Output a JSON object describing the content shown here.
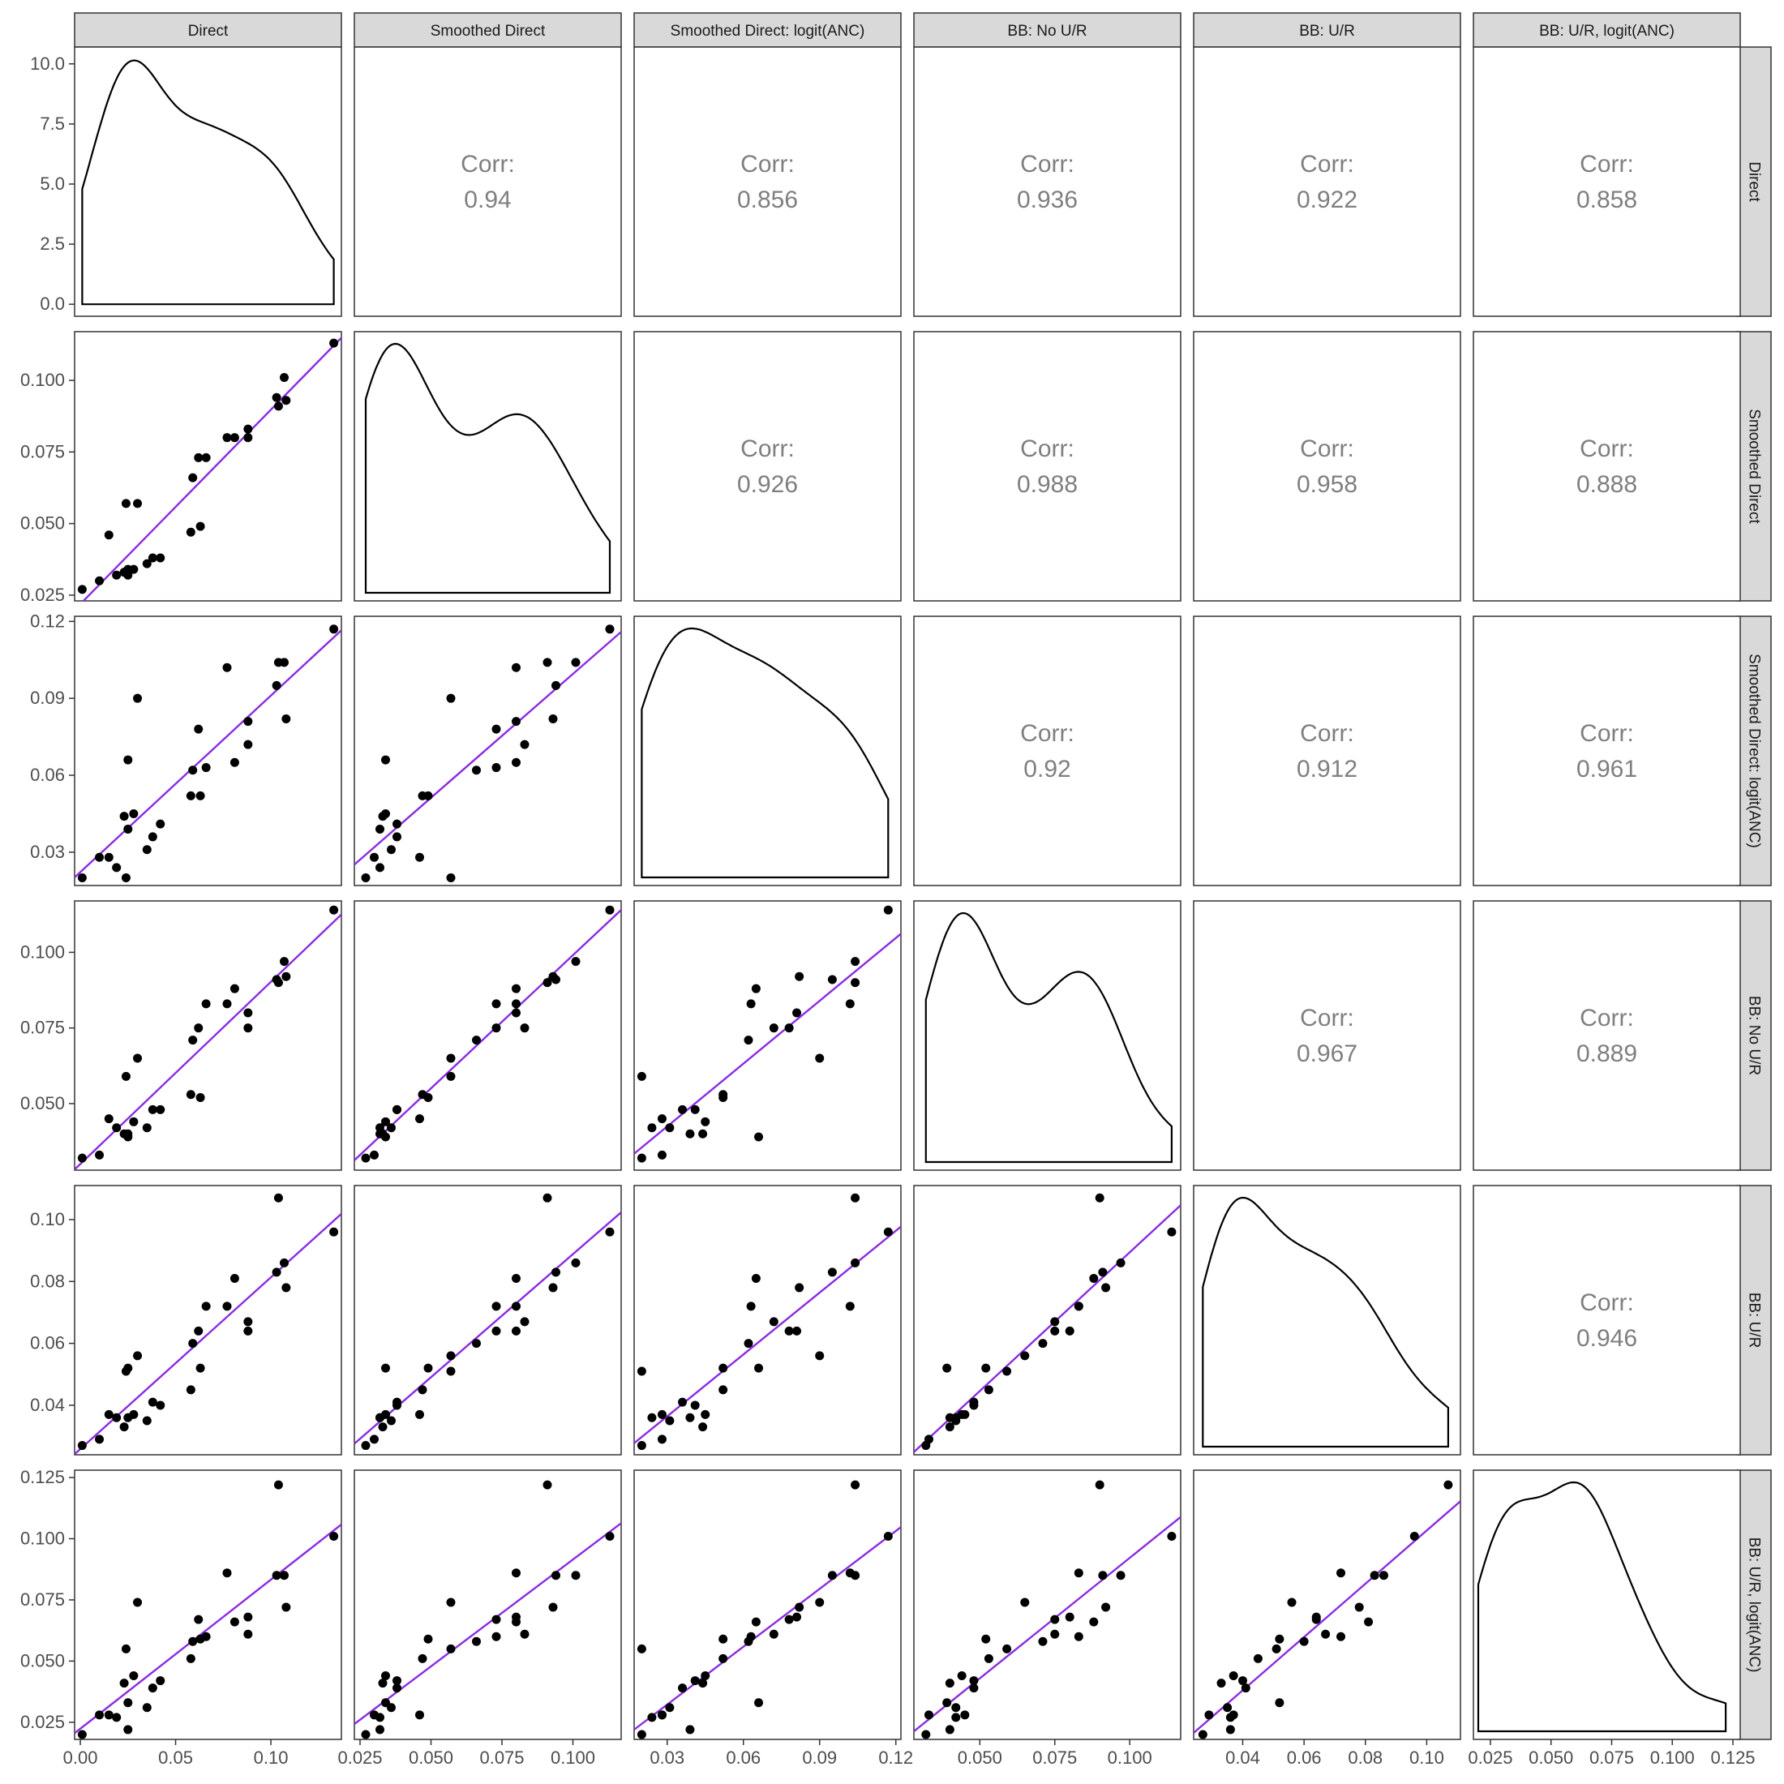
{
  "chart_data": {
    "type": "scatter-matrix",
    "variables": [
      "Direct",
      "Smoothed Direct",
      "Smoothed Direct: logit(ANC)",
      "BB: No U/R",
      "BB: U/R",
      "BB: U/R, logit(ANC)"
    ],
    "corr_label": "Corr:",
    "correlations": [
      {
        "row": 0,
        "col": 1,
        "value": "0.94"
      },
      {
        "row": 0,
        "col": 2,
        "value": "0.856"
      },
      {
        "row": 0,
        "col": 3,
        "value": "0.936"
      },
      {
        "row": 0,
        "col": 4,
        "value": "0.922"
      },
      {
        "row": 0,
        "col": 5,
        "value": "0.858"
      },
      {
        "row": 1,
        "col": 2,
        "value": "0.926"
      },
      {
        "row": 1,
        "col": 3,
        "value": "0.988"
      },
      {
        "row": 1,
        "col": 4,
        "value": "0.958"
      },
      {
        "row": 1,
        "col": 5,
        "value": "0.888"
      },
      {
        "row": 2,
        "col": 3,
        "value": "0.92"
      },
      {
        "row": 2,
        "col": 4,
        "value": "0.912"
      },
      {
        "row": 2,
        "col": 5,
        "value": "0.961"
      },
      {
        "row": 3,
        "col": 4,
        "value": "0.967"
      },
      {
        "row": 3,
        "col": 5,
        "value": "0.889"
      },
      {
        "row": 4,
        "col": 5,
        "value": "0.946"
      }
    ],
    "ranges": [
      [
        -0.003,
        0.137
      ],
      [
        0.023,
        0.117
      ],
      [
        0.017,
        0.122
      ],
      [
        0.028,
        0.117
      ],
      [
        0.024,
        0.111
      ],
      [
        0.018,
        0.128
      ]
    ],
    "x_ticks": [
      {
        "values": [
          0.0,
          0.05,
          0.1
        ],
        "labels": [
          "0.00",
          "0.05",
          "0.10"
        ]
      },
      {
        "values": [
          0.025,
          0.05,
          0.075,
          0.1
        ],
        "labels": [
          "0.025",
          "0.050",
          "0.075",
          "0.100"
        ]
      },
      {
        "values": [
          0.03,
          0.06,
          0.09,
          0.12
        ],
        "labels": [
          "0.03",
          "0.06",
          "0.09",
          "0.12"
        ]
      },
      {
        "values": [
          0.05,
          0.075,
          0.1
        ],
        "labels": [
          "0.050",
          "0.075",
          "0.100"
        ]
      },
      {
        "values": [
          0.04,
          0.06,
          0.08,
          0.1
        ],
        "labels": [
          "0.04",
          "0.06",
          "0.08",
          "0.10"
        ]
      },
      {
        "values": [
          0.025,
          0.05,
          0.075,
          0.1,
          0.125
        ],
        "labels": [
          "0.025",
          "0.050",
          "0.075",
          "0.100",
          "0.125"
        ]
      }
    ],
    "y_ticks": [
      {
        "values": [
          0.0,
          2.5,
          5.0,
          7.5,
          10.0
        ],
        "labels": [
          "0.0",
          "2.5",
          "5.0",
          "7.5",
          "10.0"
        ],
        "range": [
          -0.5,
          10.7
        ]
      },
      {
        "values": [
          0.025,
          0.05,
          0.075,
          0.1
        ],
        "labels": [
          "0.025",
          "0.050",
          "0.075",
          "0.100"
        ]
      },
      {
        "values": [
          0.03,
          0.06,
          0.09,
          0.12
        ],
        "labels": [
          "0.03",
          "0.06",
          "0.09",
          "0.12"
        ]
      },
      {
        "values": [
          0.05,
          0.075,
          0.1
        ],
        "labels": [
          "0.050",
          "0.075",
          "0.100"
        ]
      },
      {
        "values": [
          0.04,
          0.06,
          0.08,
          0.1
        ],
        "labels": [
          "0.04",
          "0.06",
          "0.08",
          "0.10"
        ]
      },
      {
        "values": [
          0.025,
          0.05,
          0.075,
          0.1,
          0.125
        ],
        "labels": [
          "0.025",
          "0.050",
          "0.075",
          "0.100",
          "0.125"
        ]
      }
    ],
    "points": [
      [
        0.001,
        0.027,
        0.02,
        0.032,
        0.027,
        0.02
      ],
      [
        0.01,
        0.03,
        0.028,
        0.033,
        0.029,
        0.028
      ],
      [
        0.015,
        0.046,
        0.028,
        0.045,
        0.037,
        0.028
      ],
      [
        0.019,
        0.032,
        0.024,
        0.042,
        0.036,
        0.027
      ],
      [
        0.023,
        0.033,
        0.044,
        0.04,
        0.033,
        0.041
      ],
      [
        0.024,
        0.057,
        0.02,
        0.059,
        0.051,
        0.055
      ],
      [
        0.025,
        0.032,
        0.039,
        0.04,
        0.036,
        0.022
      ],
      [
        0.025,
        0.034,
        0.066,
        0.039,
        0.052,
        0.033
      ],
      [
        0.028,
        0.034,
        0.045,
        0.044,
        0.037,
        0.044
      ],
      [
        0.03,
        0.057,
        0.09,
        0.065,
        0.056,
        0.074
      ],
      [
        0.035,
        0.036,
        0.031,
        0.042,
        0.035,
        0.031
      ],
      [
        0.038,
        0.038,
        0.036,
        0.048,
        0.041,
        0.039
      ],
      [
        0.042,
        0.038,
        0.041,
        0.048,
        0.04,
        0.042
      ],
      [
        0.058,
        0.047,
        0.052,
        0.053,
        0.045,
        0.051
      ],
      [
        0.059,
        0.066,
        0.062,
        0.071,
        0.06,
        0.058
      ],
      [
        0.062,
        0.073,
        0.078,
        0.075,
        0.064,
        0.067
      ],
      [
        0.063,
        0.049,
        0.052,
        0.052,
        0.052,
        0.059
      ],
      [
        0.066,
        0.073,
        0.063,
        0.083,
        0.072,
        0.06
      ],
      [
        0.077,
        0.08,
        0.102,
        0.083,
        0.072,
        0.086
      ],
      [
        0.081,
        0.08,
        0.065,
        0.088,
        0.081,
        0.066
      ],
      [
        0.088,
        0.08,
        0.081,
        0.08,
        0.064,
        0.068
      ],
      [
        0.088,
        0.083,
        0.072,
        0.075,
        0.067,
        0.061
      ],
      [
        0.103,
        0.094,
        0.095,
        0.091,
        0.083,
        0.085
      ],
      [
        0.104,
        0.091,
        0.104,
        0.09,
        0.107,
        0.122
      ],
      [
        0.107,
        0.101,
        0.104,
        0.097,
        0.086,
        0.085
      ],
      [
        0.108,
        0.093,
        0.082,
        0.092,
        0.078,
        0.072
      ],
      [
        0.133,
        0.113,
        0.117,
        0.114,
        0.096,
        0.101
      ]
    ],
    "fit_line_color": "#8a2be2",
    "point_color": "#000000",
    "strip_fill": "#d9d9d9",
    "grid": false
  }
}
